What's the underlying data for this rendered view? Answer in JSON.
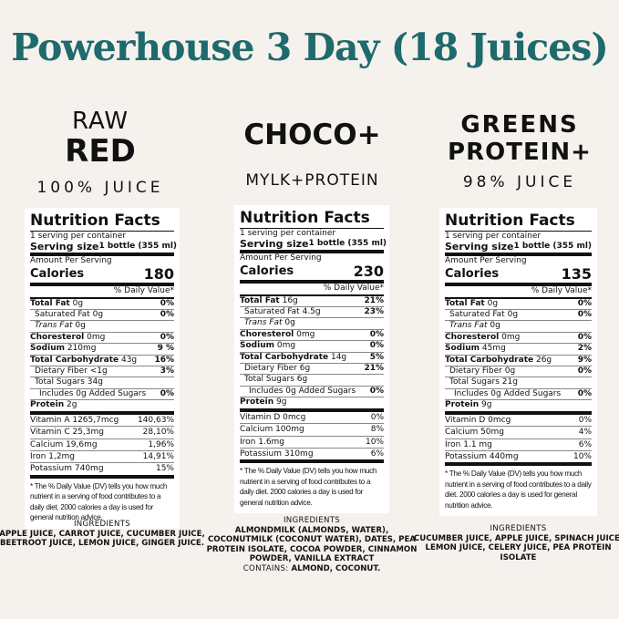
{
  "title": "Powerhouse 3 Day (18 Juices)",
  "colors": {
    "title": "#1e6a6c",
    "background": "#f5f2ed"
  },
  "products": [
    {
      "name_line1": "RAW",
      "name_line2": "RED",
      "subtitle": "100% JUICE",
      "facts": {
        "heading": "Nutrition Facts",
        "servings": "1 serving per container",
        "serving_size_label": "Serving size",
        "serving_size": "1 bottle (355 ml)",
        "amount_label": "Amount Per Serving",
        "calories_label": "Calories",
        "calories": "180",
        "dv_label": "% Daily Value*",
        "rows": [
          [
            "Total Fat",
            "0g",
            "0%",
            0,
            "b"
          ],
          [
            "Saturated Fat",
            "0g",
            "0%",
            1,
            ""
          ],
          [
            "Trans Fat",
            "0g",
            "",
            1,
            "i"
          ],
          [
            "Choresterol",
            "0mg",
            "0%",
            0,
            "b"
          ],
          [
            "Sodium",
            "210mg",
            "9 %",
            0,
            "b"
          ],
          [
            "Total Carbohydrate",
            "43g",
            "16%",
            0,
            "b"
          ],
          [
            "Dietary Fiber",
            "<1g",
            "3%",
            1,
            ""
          ],
          [
            "Total Sugars",
            "34g",
            "",
            1,
            ""
          ],
          [
            "Includes 0g Added Sugars",
            "",
            "0%",
            2,
            ""
          ],
          [
            "Protein",
            "2g",
            "",
            0,
            "b"
          ]
        ],
        "vitamins": [
          [
            "Vitamin A 1265,7mcg",
            "140,63%"
          ],
          [
            "Vitamin C 25,3mg",
            "28,10%"
          ],
          [
            "Calcium 19,6mg",
            "1,96%"
          ],
          [
            "Iron 1,2mg",
            "14,91%"
          ],
          [
            "Potassium 740mg",
            "15%"
          ]
        ],
        "footnote": "* The % Daily Value (DV) tells you how much nutrient in a serving of food contributes to a daily diet. 2000 calories a day is used for general nutrition advice."
      },
      "ingredients_label": "INGREDIENTS",
      "ingredients": "APPLE JUICE, CARROT JUICE, CUCUMBER JUICE, BEETROOT JUICE, LEMON JUICE, GINGER JUICE.",
      "contains_label": "",
      "contains": ""
    },
    {
      "name_line1": "CHOCO+",
      "name_line2": "",
      "subtitle": "MYLK+PROTEIN",
      "facts": {
        "heading": "Nutrition Facts",
        "servings": "1 serving per container",
        "serving_size_label": "Serving size",
        "serving_size": "1 bottle (355 ml)",
        "amount_label": "Amount Per Serving",
        "calories_label": "Calories",
        "calories": "230",
        "dv_label": "% Daily Value*",
        "rows": [
          [
            "Total Fat",
            "16g",
            "21%",
            0,
            "b"
          ],
          [
            "Saturated Fat",
            "4.5g",
            "23%",
            1,
            ""
          ],
          [
            "Trans Fat",
            "0g",
            "",
            1,
            "i"
          ],
          [
            "Choresterol",
            "0mg",
            "0%",
            0,
            "b"
          ],
          [
            "Sodium",
            "0mg",
            "0%",
            0,
            "b"
          ],
          [
            "Total Carbohydrate",
            "14g",
            "5%",
            0,
            "b"
          ],
          [
            "Dietary Fiber",
            "6g",
            "21%",
            1,
            ""
          ],
          [
            "Total Sugars",
            "6g",
            "",
            1,
            ""
          ],
          [
            "Includes 0g Added Sugars",
            "",
            "0%",
            2,
            ""
          ],
          [
            "Protein",
            "9g",
            "",
            0,
            "b"
          ]
        ],
        "vitamins": [
          [
            "Vitamin D 0mcg",
            "0%"
          ],
          [
            "Calcium 100mg",
            "8%"
          ],
          [
            "Iron 1.6mg",
            "10%"
          ],
          [
            "Potassium 310mg",
            "6%"
          ]
        ],
        "footnote": "* The % Daily Value (DV) tells you how much nutrient in a serving of food contributes to a daily diet. 2000 calories a day is used for general nutrition advice."
      },
      "ingredients_label": "INGREDIENTS",
      "ingredients": "ALMONDMILK (ALMONDS, WATER), COCONUTMILK (COCONUT WATER), DATES, PEA PROTEIN ISOLATE, COCOA POWDER, CINNAMON POWDER, VANILLA EXTRACT",
      "contains_label": "CONTAINS:",
      "contains": "ALMOND, COCONUT."
    },
    {
      "name_line1": "GREENS",
      "name_line2": "PROTEIN+",
      "subtitle": "98% JUICE",
      "facts": {
        "heading": "Nutrition Facts",
        "servings": "1 serving per container",
        "serving_size_label": "Serving size",
        "serving_size": "1 bottle (355 ml)",
        "amount_label": "Amount Per Serving",
        "calories_label": "Calories",
        "calories": "135",
        "dv_label": "% Daily Value*",
        "rows": [
          [
            "Total Fat",
            "0g",
            "0%",
            0,
            "b"
          ],
          [
            "Saturated Fat",
            "0g",
            "0%",
            1,
            ""
          ],
          [
            "Trans Fat",
            "0g",
            "",
            1,
            "i"
          ],
          [
            "Choresterol",
            "0mg",
            "0%",
            0,
            "b"
          ],
          [
            "Sodium",
            "45mg",
            "2%",
            0,
            "b"
          ],
          [
            "Total Carbohydrate",
            "26g",
            "9%",
            0,
            "b"
          ],
          [
            "Dietary Fiber",
            "0g",
            "0%",
            1,
            ""
          ],
          [
            "Total Sugars",
            "21g",
            "",
            1,
            ""
          ],
          [
            "Includes 0g Added Sugars",
            "",
            "0%",
            2,
            ""
          ],
          [
            "Protein",
            "9g",
            "",
            0,
            "b"
          ]
        ],
        "vitamins": [
          [
            "Vitamin D 0mcg",
            "0%"
          ],
          [
            "Calcium 50mg",
            "4%"
          ],
          [
            "Iron 1.1 mg",
            "6%"
          ],
          [
            "Potassium 440mg",
            "10%"
          ]
        ],
        "footnote": "* The % Daily Value (DV) tells you how much nutrient in a serving of food contributes to a daily diet. 2000 calories a day is used for general nutrition advice."
      },
      "ingredients_label": "INGREDIENTS",
      "ingredients": "CUCUMBER JUICE, APPLE JUICE, SPINACH JUICE, LEMON JUICE, CELERY JUICE, PEA PROTEIN ISOLATE",
      "contains_label": "",
      "contains": ""
    }
  ]
}
